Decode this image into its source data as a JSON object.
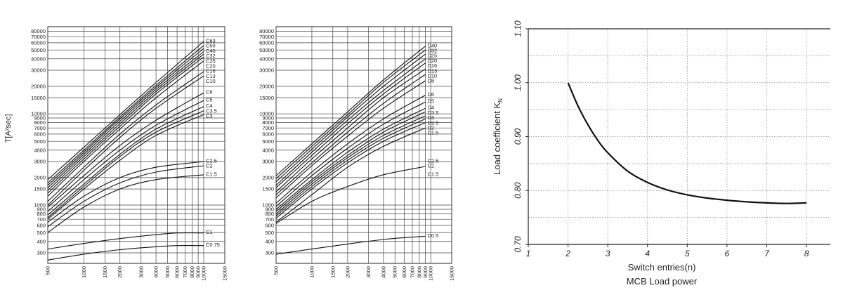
{
  "chart_data": [
    {
      "type": "line",
      "ylabel": "T[A²sec]",
      "xscale": "log",
      "yscale": "log",
      "xlim": [
        500,
        15000
      ],
      "ylim": [
        230,
        90000
      ],
      "x_ticks": [
        500,
        1000,
        1500,
        2000,
        3000,
        4000,
        5000,
        6000,
        7000,
        8000,
        9000,
        10000,
        15000
      ],
      "x_tick_labels": [
        "500",
        "1000",
        "1500",
        "2000",
        "3000",
        "4000",
        "5000",
        "6000",
        "7000",
        "8000",
        "9000",
        "10000",
        "15000"
      ],
      "y_ticks": [
        300,
        400,
        500,
        600,
        700,
        800,
        900,
        1000,
        1500,
        2000,
        3000,
        4000,
        5000,
        6000,
        7000,
        8000,
        9000,
        10000,
        15000,
        20000,
        30000,
        40000,
        50000,
        60000,
        70000,
        80000
      ],
      "y_tick_labels": [
        "300",
        "400",
        "500",
        "600",
        "700",
        "800",
        "900",
        "1000",
        "1500",
        "2000",
        "3000",
        "4000",
        "5000",
        "6000",
        "7000",
        "8000",
        "9000",
        "10000",
        "15000",
        "20000",
        "30000",
        "40000",
        "50000",
        "60000",
        "70000",
        "80000"
      ],
      "series": [
        {
          "name": "C63",
          "x": [
            500,
            1000,
            2000,
            4000,
            10000
          ],
          "y": [
            1900,
            4300,
            9800,
            22000,
            62000
          ]
        },
        {
          "name": "C50",
          "x": [
            500,
            1000,
            2000,
            4000,
            10000
          ],
          "y": [
            1750,
            4000,
            9200,
            20500,
            56000
          ]
        },
        {
          "name": "C40",
          "x": [
            500,
            1000,
            2000,
            4000,
            10000
          ],
          "y": [
            1650,
            3800,
            8800,
            19500,
            52000
          ]
        },
        {
          "name": "C32",
          "x": [
            500,
            1000,
            2000,
            4000,
            10000
          ],
          "y": [
            1550,
            3600,
            8300,
            18500,
            48000
          ]
        },
        {
          "name": "C25",
          "x": [
            500,
            1000,
            2000,
            4000,
            10000
          ],
          "y": [
            1450,
            3400,
            7800,
            17500,
            45000
          ]
        },
        {
          "name": "C20",
          "x": [
            500,
            1000,
            2000,
            4000,
            10000
          ],
          "y": [
            1350,
            3200,
            7300,
            16500,
            42000
          ]
        },
        {
          "name": "C16",
          "x": [
            500,
            1000,
            2000,
            4000,
            10000
          ],
          "y": [
            1250,
            3000,
            6800,
            15000,
            38000
          ]
        },
        {
          "name": "C13",
          "x": [
            500,
            1000,
            2000,
            4000,
            10000
          ],
          "y": [
            1100,
            2600,
            6000,
            12500,
            29000
          ]
        },
        {
          "name": "C10",
          "x": [
            500,
            1000,
            2000,
            4000,
            10000
          ],
          "y": [
            1000,
            2400,
            5500,
            11500,
            26000
          ]
        },
        {
          "name": "C6",
          "x": [
            500,
            1000,
            2000,
            4000,
            10000
          ],
          "y": [
            950,
            2100,
            4500,
            8500,
            17000
          ]
        },
        {
          "name": "C5",
          "x": [
            500,
            1000,
            2000,
            4000,
            10000
          ],
          "y": [
            850,
            1900,
            4000,
            7500,
            14000
          ]
        },
        {
          "name": "C4",
          "x": [
            500,
            1000,
            2000,
            4000,
            10000
          ],
          "y": [
            780,
            1700,
            3600,
            6800,
            12000
          ]
        },
        {
          "name": "C3.5",
          "x": [
            500,
            1000,
            2000,
            4000,
            10000
          ],
          "y": [
            730,
            1600,
            3400,
            6300,
            10800
          ]
        },
        {
          "name": "C3",
          "x": [
            500,
            1000,
            2000,
            4000,
            10000
          ],
          "y": [
            700,
            1500,
            3100,
            5800,
            9800
          ]
        },
        {
          "name": "C2.5",
          "x": [
            500,
            1000,
            2000,
            4000,
            10000
          ],
          "y": [
            650,
            1250,
            2000,
            2600,
            3000
          ]
        },
        {
          "name": "C2",
          "x": [
            500,
            1000,
            2000,
            4000,
            10000
          ],
          "y": [
            580,
            1100,
            1750,
            2300,
            2700
          ]
        },
        {
          "name": "C1.5",
          "x": [
            500,
            1000,
            2000,
            4000,
            10000
          ],
          "y": [
            500,
            950,
            1500,
            1900,
            2150
          ]
        },
        {
          "name": "C1",
          "x": [
            500,
            1000,
            2000,
            4000,
            6000,
            10000
          ],
          "y": [
            330,
            380,
            430,
            475,
            495,
            495
          ]
        },
        {
          "name": "C0.75",
          "x": [
            500,
            1000,
            2000,
            4000,
            6000,
            10000
          ],
          "y": [
            250,
            290,
            325,
            350,
            360,
            360
          ]
        }
      ]
    },
    {
      "type": "line",
      "xscale": "log",
      "yscale": "log",
      "xlim": [
        500,
        15000
      ],
      "ylim": [
        230,
        90000
      ],
      "x_ticks": [
        500,
        1000,
        1500,
        2000,
        3000,
        4000,
        5000,
        6000,
        7000,
        8000,
        9000,
        10000,
        15000
      ],
      "x_tick_labels": [
        "500",
        "1000",
        "1500",
        "2000",
        "3000",
        "4000",
        "5000",
        "6000",
        "7000",
        "8000",
        "9000",
        "10000",
        "15000"
      ],
      "y_ticks": [
        300,
        400,
        500,
        600,
        700,
        800,
        900,
        1000,
        1500,
        2000,
        3000,
        4000,
        5000,
        6000,
        7000,
        8000,
        9000,
        10000,
        15000,
        20000,
        30000,
        40000,
        50000,
        60000,
        70000,
        80000
      ],
      "y_tick_labels": [
        "300",
        "400",
        "500",
        "600",
        "700",
        "800",
        "900",
        "1000",
        "1500",
        "2000",
        "3000",
        "4000",
        "5000",
        "6000",
        "7000",
        "8000",
        "9000",
        "10000",
        "15000",
        "20000",
        "30000",
        "40000",
        "50000",
        "60000",
        "70000",
        "80000"
      ],
      "series": [
        {
          "name": "D40",
          "x": [
            500,
            1000,
            2000,
            4000,
            9000
          ],
          "y": [
            2100,
            4700,
            10500,
            23500,
            55000
          ]
        },
        {
          "name": "D32",
          "x": [
            500,
            1000,
            2000,
            4000,
            9000
          ],
          "y": [
            1950,
            4400,
            9800,
            22000,
            50000
          ]
        },
        {
          "name": "D25",
          "x": [
            500,
            1000,
            2000,
            4000,
            9000
          ],
          "y": [
            1800,
            4100,
            9200,
            20000,
            45000
          ]
        },
        {
          "name": "D20",
          "x": [
            500,
            1000,
            2000,
            4000,
            9000
          ],
          "y": [
            1650,
            3800,
            8500,
            18000,
            40000
          ]
        },
        {
          "name": "D16",
          "x": [
            500,
            1000,
            2000,
            4000,
            9000
          ],
          "y": [
            1550,
            3500,
            7800,
            16500,
            36000
          ]
        },
        {
          "name": "D13",
          "x": [
            500,
            1000,
            2000,
            4000,
            9000
          ],
          "y": [
            1400,
            3200,
            7000,
            15000,
            31000
          ]
        },
        {
          "name": "D10",
          "x": [
            500,
            1000,
            2000,
            4000,
            9000
          ],
          "y": [
            1300,
            2900,
            6300,
            13000,
            27000
          ]
        },
        {
          "name": "D8",
          "x": [
            500,
            1000,
            2000,
            4000,
            9000
          ],
          "y": [
            1200,
            2700,
            5700,
            11500,
            23000
          ]
        },
        {
          "name": "D6",
          "x": [
            500,
            1000,
            2000,
            4000,
            9000
          ],
          "y": [
            1050,
            2300,
            4700,
            8800,
            16000
          ]
        },
        {
          "name": "D5",
          "x": [
            500,
            1000,
            2000,
            4000,
            9000
          ],
          "y": [
            970,
            2100,
            4200,
            7700,
            13500
          ]
        },
        {
          "name": "D4",
          "x": [
            500,
            1000,
            2000,
            4000,
            9000
          ],
          "y": [
            900,
            1900,
            3800,
            6800,
            11500
          ]
        },
        {
          "name": "D3.5",
          "x": [
            500,
            1000,
            2000,
            4000,
            9000
          ],
          "y": [
            850,
            1800,
            3500,
            6300,
            10500
          ]
        },
        {
          "name": "D3",
          "x": [
            500,
            1000,
            2000,
            4000,
            9000
          ],
          "y": [
            800,
            1700,
            3300,
            5800,
            9500
          ]
        },
        {
          "name": "D2.5",
          "x": [
            500,
            1000,
            2000,
            4000,
            9000
          ],
          "y": [
            760,
            1600,
            3100,
            5400,
            8800
          ]
        },
        {
          "name": "D2",
          "x": [
            500,
            1000,
            2000,
            4000,
            9000
          ],
          "y": [
            720,
            1500,
            2900,
            5000,
            8000
          ]
        },
        {
          "name": "D1.5",
          "x": [
            500,
            1000,
            2000,
            4000,
            9000
          ],
          "y": [
            650,
            1300,
            2600,
            4400,
            7000
          ]
        },
        {
          "name": "C2.5",
          "x": [
            9000
          ],
          "y": [
            3000
          ]
        },
        {
          "name": "C2",
          "x": [
            500,
            1000,
            2000,
            4000,
            9000
          ],
          "y": [
            630,
            1100,
            1600,
            2150,
            2650
          ]
        },
        {
          "name": "C1.5",
          "x": [
            9000
          ],
          "y": [
            2150
          ]
        },
        {
          "name": "D0.5",
          "x": [
            500,
            1000,
            2000,
            4000,
            6000,
            9000
          ],
          "y": [
            290,
            330,
            375,
            420,
            440,
            455
          ]
        }
      ]
    },
    {
      "type": "line",
      "xlabel": "Switch entries(n)",
      "subtitle": "MCB Load power",
      "ylabel": "Load coefficient K",
      "ylabel_sub": "N",
      "xlim": [
        1,
        8.6
      ],
      "ylim": [
        0.7,
        1.1
      ],
      "x_ticks": [
        1,
        2,
        3,
        4,
        5,
        6,
        7,
        8
      ],
      "x_tick_labels": [
        "1",
        "2",
        "3",
        "4",
        "5",
        "6",
        "7",
        "8"
      ],
      "y_ticks": [
        0.7,
        0.8,
        0.9,
        1.0,
        1.1
      ],
      "y_tick_labels": [
        "0.70",
        "0.80",
        "0.90",
        "1.00",
        "1.10"
      ],
      "grid": true,
      "series": [
        {
          "x": [
            2,
            2.25,
            2.5,
            2.75,
            3,
            3.5,
            4,
            4.5,
            5,
            5.5,
            6,
            6.5,
            7,
            7.5,
            8
          ],
          "y": [
            1.0,
            0.957,
            0.922,
            0.893,
            0.87,
            0.836,
            0.815,
            0.801,
            0.792,
            0.786,
            0.782,
            0.779,
            0.777,
            0.776,
            0.777
          ]
        }
      ]
    }
  ]
}
